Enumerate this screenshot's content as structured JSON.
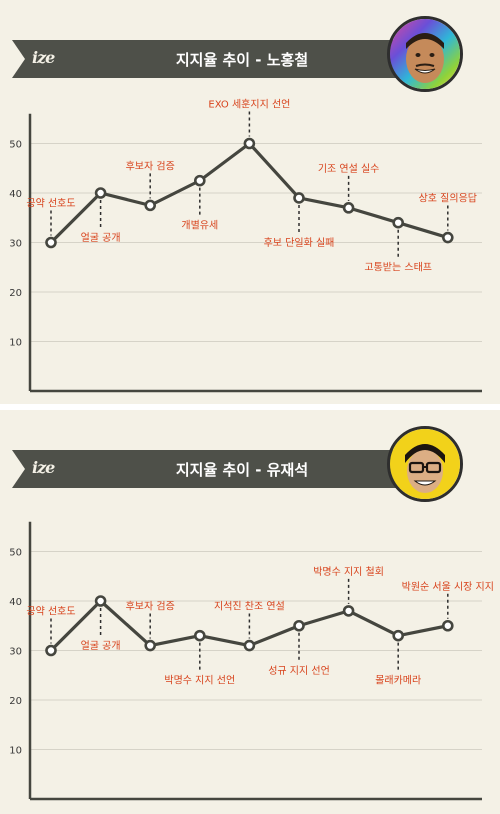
{
  "logo_text": "ize",
  "colors": {
    "background": "#f4f1e6",
    "banner": "#4e5049",
    "line": "#45463f",
    "annotation": "#d8431c",
    "grid": "#d6d3c8"
  },
  "chart_data": [
    {
      "type": "line",
      "title": "지지율 추이 - 노홍철",
      "ylim": [
        0,
        55
      ],
      "yticks": [
        10,
        20,
        30,
        40,
        50
      ],
      "grid": true,
      "x": [
        1,
        2,
        3,
        4,
        5,
        6,
        7,
        8,
        9
      ],
      "values": [
        30,
        40,
        37.5,
        42.5,
        50,
        39,
        37,
        34,
        31
      ],
      "annotations": [
        "공약 선호도",
        "얼굴 공개",
        "후보자 검증",
        "개별유세",
        "EXO 세훈지지 선언",
        "후보 단일화 실패",
        "기조 연설 실수",
        "고통받는 스태프",
        "상호 질의응답"
      ],
      "annotation_positions": [
        "above",
        "below",
        "above",
        "below",
        "above",
        "below",
        "above",
        "below",
        "above"
      ]
    },
    {
      "type": "line",
      "title": "지지율 추이 - 유재석",
      "ylim": [
        0,
        55
      ],
      "yticks": [
        10,
        20,
        30,
        40,
        50
      ],
      "grid": true,
      "x": [
        1,
        2,
        3,
        4,
        5,
        6,
        7,
        8,
        9
      ],
      "values": [
        30,
        40,
        31,
        33,
        31,
        35,
        38,
        33,
        35
      ],
      "annotations": [
        "공약 선호도",
        "얼굴 공개",
        "후보자 검증",
        "박명수 지지 선언",
        "지석진 찬조 연설",
        "성규 지지 선언",
        "박명수 지지 철회",
        "몰래카메라",
        "박원순 서울 시장 지지"
      ],
      "annotation_positions": [
        "above",
        "below",
        "above",
        "below",
        "above",
        "below",
        "above",
        "below",
        "above"
      ]
    }
  ]
}
